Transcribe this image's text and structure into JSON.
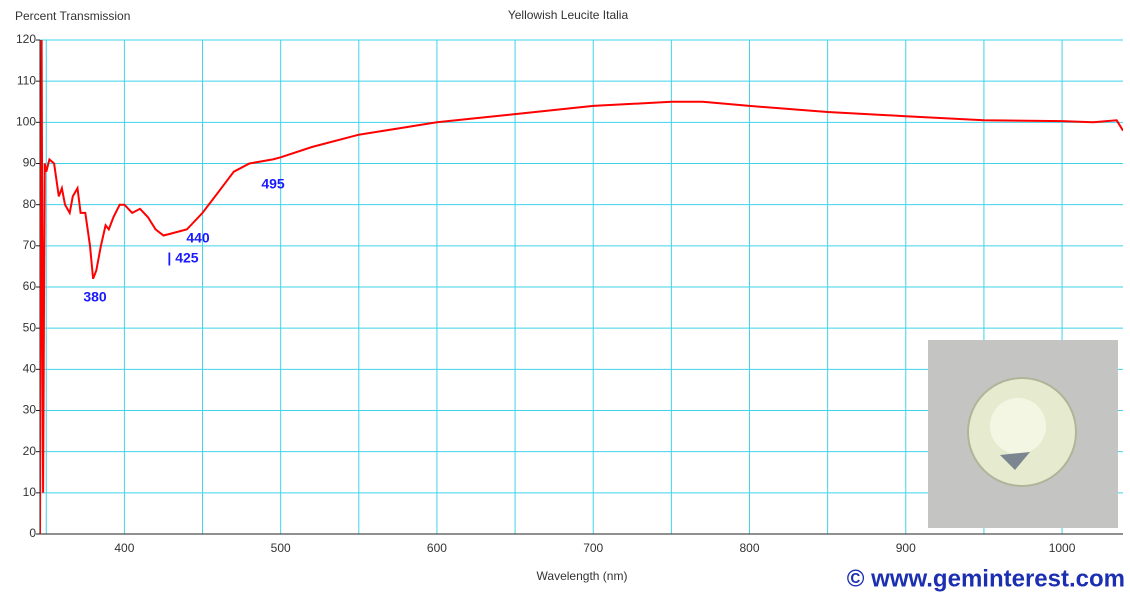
{
  "chart_data": {
    "type": "line",
    "title": "Yellowish Leucite Italia",
    "y_label": "Percent Transmission",
    "x_label": "Wavelength (nm)",
    "watermark": "© www.geminterest.com",
    "annotations": [
      "380",
      "440",
      "| 425",
      "495"
    ],
    "x": [
      345,
      346,
      347,
      348,
      349,
      350,
      352,
      355,
      358,
      360,
      362,
      365,
      367,
      370,
      372,
      375,
      378,
      380,
      382,
      385,
      388,
      390,
      393,
      397,
      400,
      405,
      410,
      415,
      420,
      425,
      430,
      440,
      450,
      460,
      470,
      480,
      495,
      500,
      520,
      550,
      600,
      650,
      700,
      750,
      770,
      800,
      850,
      900,
      950,
      1000,
      1020,
      1035,
      1039
    ],
    "series": [
      {
        "name": "Transmission",
        "color": "#ff0000",
        "values": [
          120,
          0,
          120,
          10,
          90,
          88,
          91,
          90,
          82,
          84,
          80,
          78,
          82,
          84,
          78,
          78,
          70,
          62,
          64,
          70,
          75,
          74,
          77,
          80,
          80,
          78,
          79,
          77,
          74,
          72.5,
          73,
          74,
          78,
          83,
          88,
          90,
          91,
          91.5,
          94,
          97,
          100,
          102,
          104,
          105,
          105,
          104,
          102.5,
          101.5,
          100.5,
          100.3,
          100,
          100.5,
          98
        ]
      }
    ],
    "xlim": [
      346,
      1039
    ],
    "ylim": [
      0,
      120
    ],
    "xticks": [
      400,
      500,
      600,
      700,
      800,
      900,
      1000
    ],
    "minor_xticks": [
      350,
      450,
      550,
      650,
      750,
      850,
      950
    ],
    "yticks": [
      0,
      10,
      20,
      30,
      40,
      50,
      60,
      70,
      80,
      90,
      100,
      110,
      120
    ],
    "grid": true,
    "grid_color": "#3fd3ea"
  }
}
